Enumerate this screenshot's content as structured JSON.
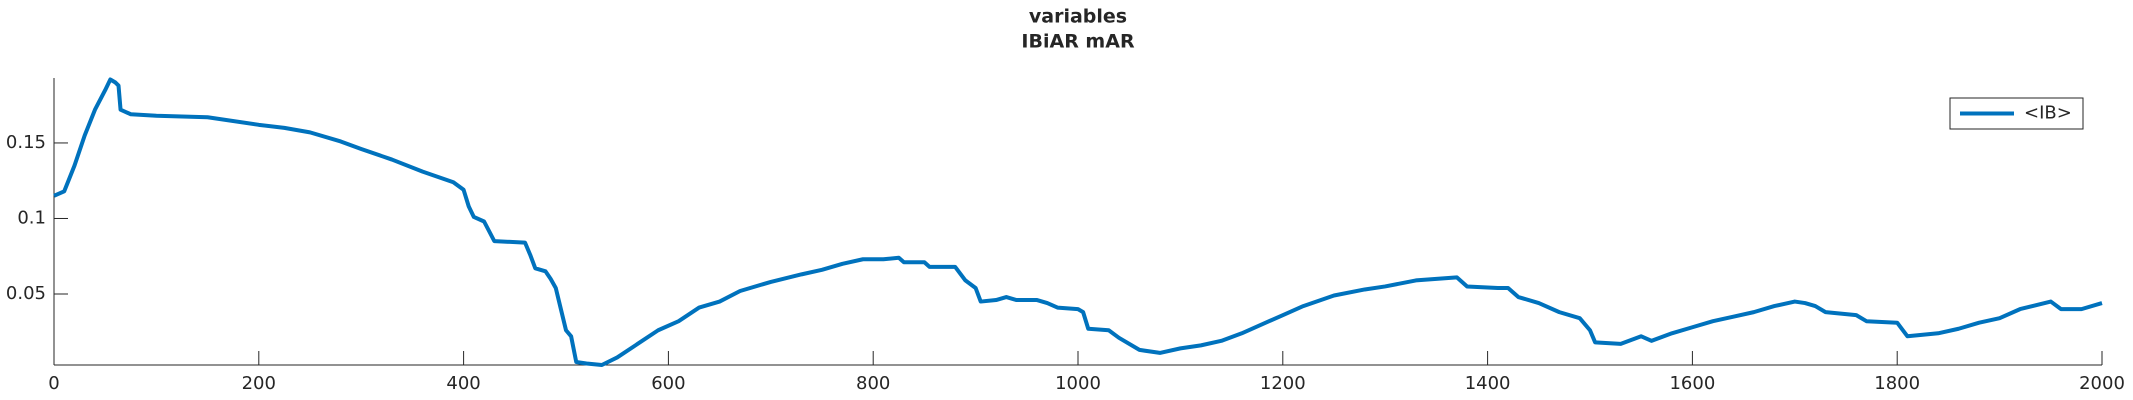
{
  "chart_data": {
    "type": "line",
    "title": "variables",
    "subtitle": "IBiAR mAR",
    "x": [
      0,
      10,
      20,
      30,
      40,
      50,
      55,
      60,
      63,
      65,
      75,
      100,
      150,
      200,
      225,
      250,
      280,
      300,
      330,
      360,
      390,
      400,
      405,
      410,
      420,
      430,
      460,
      465,
      470,
      480,
      485,
      490,
      495,
      500,
      505,
      510,
      520,
      535,
      550,
      570,
      590,
      610,
      630,
      650,
      670,
      700,
      730,
      750,
      770,
      790,
      810,
      825,
      830,
      850,
      855,
      880,
      890,
      900,
      905,
      920,
      930,
      940,
      960,
      970,
      980,
      1000,
      1005,
      1010,
      1030,
      1040,
      1060,
      1080,
      1100,
      1120,
      1140,
      1160,
      1180,
      1200,
      1220,
      1250,
      1280,
      1300,
      1330,
      1350,
      1370,
      1380,
      1410,
      1420,
      1430,
      1450,
      1470,
      1490,
      1500,
      1505,
      1530,
      1550,
      1560,
      1580,
      1600,
      1620,
      1640,
      1660,
      1680,
      1700,
      1710,
      1720,
      1730,
      1760,
      1770,
      1800,
      1810,
      1840,
      1860,
      1880,
      1900,
      1920,
      1950,
      1960,
      1980,
      2000
    ],
    "series": [
      {
        "name": "<IB>",
        "color": "#0072bd",
        "values": [
          0.115,
          0.118,
          0.135,
          0.155,
          0.172,
          0.185,
          0.192,
          0.19,
          0.188,
          0.172,
          0.169,
          0.168,
          0.167,
          0.162,
          0.16,
          0.157,
          0.151,
          0.146,
          0.139,
          0.131,
          0.124,
          0.119,
          0.108,
          0.101,
          0.098,
          0.085,
          0.084,
          0.076,
          0.067,
          0.065,
          0.06,
          0.054,
          0.04,
          0.026,
          0.022,
          0.005,
          0.004,
          0.003,
          0.008,
          0.017,
          0.026,
          0.032,
          0.041,
          0.045,
          0.052,
          0.058,
          0.063,
          0.066,
          0.07,
          0.073,
          0.073,
          0.074,
          0.071,
          0.071,
          0.068,
          0.068,
          0.059,
          0.054,
          0.045,
          0.046,
          0.048,
          0.046,
          0.046,
          0.044,
          0.041,
          0.04,
          0.038,
          0.027,
          0.026,
          0.021,
          0.013,
          0.011,
          0.014,
          0.016,
          0.019,
          0.024,
          0.03,
          0.036,
          0.042,
          0.049,
          0.053,
          0.055,
          0.059,
          0.06,
          0.061,
          0.055,
          0.054,
          0.054,
          0.048,
          0.044,
          0.038,
          0.034,
          0.026,
          0.018,
          0.017,
          0.022,
          0.019,
          0.024,
          0.028,
          0.032,
          0.035,
          0.038,
          0.042,
          0.045,
          0.044,
          0.042,
          0.038,
          0.036,
          0.032,
          0.031,
          0.022,
          0.024,
          0.027,
          0.031,
          0.034,
          0.04,
          0.045,
          0.04,
          0.04,
          0.044
        ]
      }
    ],
    "xlim": [
      0,
      2000
    ],
    "xticks": [
      0,
      200,
      400,
      600,
      800,
      1000,
      1200,
      1400,
      1600,
      1800,
      2000
    ],
    "ylim": [
      0.003,
      0.193
    ],
    "yticks": [
      0.05,
      0.1,
      0.15
    ],
    "legend": "northeast"
  }
}
